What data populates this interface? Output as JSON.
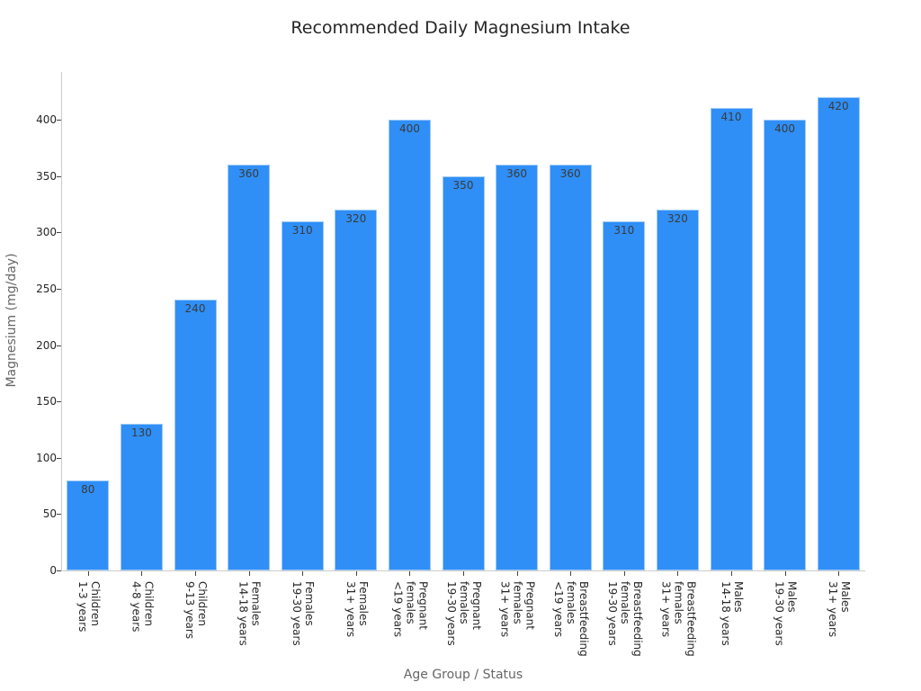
{
  "chart_data": {
    "type": "bar",
    "title": "Recommended Daily Magnesium Intake",
    "xlabel": "Age Group / Status",
    "ylabel": "Magnesium (mg/day)",
    "categories": [
      "Children\n1-3 years",
      "Children\n4-8 years",
      "Children\n9-13 years",
      "Females\n14-18 years",
      "Females\n19-30 years",
      "Females\n31+ years",
      "Pregnant\nfemales\n<19 years",
      "Pregnant\nfemales\n19-30 years",
      "Pregnant\nfemales\n31+ years",
      "Breastfeeding\nfemales\n<19 years",
      "Breastfeeding\nfemales\n19-30 years",
      "Breastfeeding\nfemales\n31+ years",
      "Males\n14-18 years",
      "Males\n19-30 years",
      "Males\n31+ years"
    ],
    "values": [
      80,
      130,
      240,
      360,
      310,
      320,
      400,
      350,
      360,
      360,
      310,
      320,
      410,
      400,
      420
    ],
    "yticks": [
      0,
      50,
      100,
      150,
      200,
      250,
      300,
      350,
      400
    ],
    "ylim": [
      0,
      440
    ],
    "grid": false,
    "legend": null,
    "bar_color": "#2f8ff6",
    "data_labels": true
  }
}
